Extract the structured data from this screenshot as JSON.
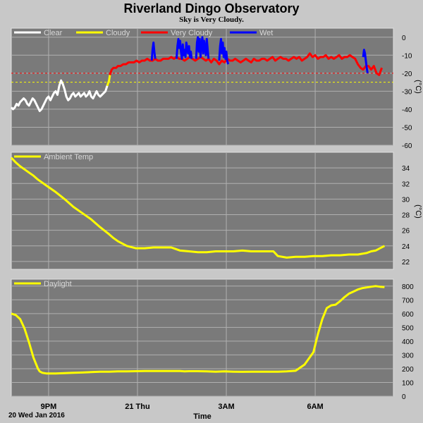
{
  "page": {
    "title": "Riverland Dingo Observatory",
    "subtitle": "Sky is Very Cloudy.",
    "date_label": "20 Wed Jan 2016"
  },
  "colors": {
    "background": "#c8c8c8",
    "plot": "#7a7a7a",
    "grid": "#b0b0b0",
    "clear": "#ffffff",
    "cloudy": "#ffff00",
    "very_cloudy": "#ff0000",
    "wet": "#0000ff"
  },
  "chart_data": [
    {
      "type": "line",
      "name": "sky",
      "ylabel": "(°C)",
      "ylim": [
        -60,
        5
      ],
      "yticks": [
        0,
        -10,
        -20,
        -30,
        -40,
        -50,
        -60
      ],
      "grid": true,
      "legend": {
        "placement": "top-left",
        "entries": [
          {
            "label": "Clear",
            "color": "#ffffff"
          },
          {
            "label": "Cloudy",
            "color": "#ffff00"
          },
          {
            "label": "Very Cloudy",
            "color": "#ff0000"
          },
          {
            "label": "Wet",
            "color": "#0000ff"
          }
        ]
      },
      "thresholds": [
        {
          "value": -20,
          "color": "#ff0000"
        },
        {
          "value": -25,
          "color": "#ffff00"
        }
      ],
      "series": [
        {
          "color": "#ffffff",
          "x": [
            0,
            0.2,
            0.4,
            0.6,
            0.8,
            1.0,
            1.2,
            1.4,
            1.6,
            1.8,
            2.0,
            2.2,
            2.4,
            2.6,
            2.8,
            3.0,
            3.2,
            3.4,
            3.6,
            3.8,
            4.0,
            4.2,
            4.4,
            4.6,
            4.8,
            5.0,
            5.2,
            5.4,
            5.6,
            5.8,
            6.0,
            6.2,
            6.4,
            6.6,
            6.8,
            7.0,
            7.2,
            7.4,
            7.6,
            7.8,
            8.0,
            8.2,
            8.4,
            8.6,
            8.8,
            9.0,
            9.2,
            9.4,
            9.6,
            9.8,
            10.0,
            10.2,
            10.4,
            10.6,
            10.8
          ],
          "y": [
            -39,
            -40,
            -39,
            -37,
            -38,
            -36,
            -35,
            -34,
            -35,
            -37,
            -38,
            -36,
            -34,
            -35,
            -37,
            -39,
            -41,
            -40,
            -38,
            -36,
            -34,
            -33,
            -35,
            -33,
            -31,
            -30,
            -32,
            -27,
            -24,
            -26,
            -29,
            -33,
            -35,
            -34,
            -32,
            -31,
            -33,
            -32,
            -31,
            -33,
            -32,
            -31,
            -33,
            -32,
            -30,
            -33,
            -34,
            -32,
            -30,
            -32,
            -33,
            -32,
            -31,
            -30,
            -27
          ]
        },
        {
          "color": "#ffff00",
          "x": [
            10.8,
            11.0,
            11.1
          ],
          "y": [
            -27,
            -24,
            -21
          ]
        },
        {
          "color": "#ff0000",
          "x": [
            11.1,
            11.3,
            11.5,
            11.8,
            12.0,
            12.3,
            12.6,
            12.9,
            13.2,
            13.5,
            13.8,
            14.1,
            14.4,
            14.7,
            15.0,
            15.3,
            15.6,
            15.9,
            16.2,
            16.5,
            16.8,
            17.1,
            17.4,
            17.7,
            18.0,
            18.3,
            18.6,
            18.9,
            19.2,
            19.5,
            19.8,
            20.1,
            20.4,
            20.7,
            21.0,
            21.3,
            21.6,
            21.9,
            22.2,
            22.5,
            22.8,
            23.1,
            23.4,
            23.7,
            24.0,
            24.3,
            24.6,
            24.9,
            25.2,
            25.5,
            25.8,
            26.1,
            26.4,
            26.7,
            27.0,
            27.3,
            27.6,
            27.9,
            28.2,
            28.5,
            28.8,
            29.1,
            29.4,
            29.7,
            30.0,
            30.3,
            30.6,
            30.9,
            31.2,
            31.5,
            31.8,
            32.1,
            32.4,
            32.7,
            33.0,
            33.3,
            33.6,
            33.9,
            34.2,
            34.5,
            34.8,
            35.1,
            35.4,
            35.7,
            36.0,
            36.3,
            36.6,
            36.9,
            37.2,
            37.5,
            37.8,
            38.1,
            38.4,
            38.7,
            39.0,
            39.3,
            39.6,
            39.9,
            40.2,
            40.5,
            40.8,
            41.1,
            41.4,
            41.7
          ],
          "y": [
            -21,
            -18,
            -17,
            -17,
            -16,
            -16,
            -15,
            -15,
            -14,
            -14,
            -14,
            -13,
            -14,
            -13,
            -13,
            -12,
            -13,
            -13,
            -12,
            -13,
            -13,
            -12,
            -12,
            -12,
            -11,
            -12,
            -11,
            -12,
            -12,
            -13,
            -12,
            -11,
            -12,
            -13,
            -12,
            -11,
            -12,
            -13,
            -12,
            -14,
            -12,
            -13,
            -15,
            -13,
            -14,
            -12,
            -13,
            -13,
            -12,
            -13,
            -14,
            -13,
            -12,
            -13,
            -14,
            -12,
            -13,
            -13,
            -12,
            -12,
            -13,
            -12,
            -11,
            -13,
            -12,
            -11,
            -12,
            -12,
            -13,
            -12,
            -11,
            -12,
            -11,
            -13,
            -12,
            -11,
            -9,
            -11,
            -10,
            -12,
            -11,
            -11,
            -10,
            -12,
            -11,
            -12,
            -11,
            -10,
            -12,
            -11,
            -11,
            -10,
            -11,
            -12,
            -15,
            -17,
            -18,
            -16,
            -16,
            -18,
            -16,
            -20,
            -21,
            -17
          ]
        },
        {
          "color": "#0000ff",
          "x": [
            15.8,
            15.9,
            16.0,
            16.1,
            16.2
          ],
          "y": [
            -13,
            -7,
            -3,
            -8,
            -12
          ]
        },
        {
          "color": "#0000ff",
          "x": [
            18.6,
            18.7,
            18.8,
            18.9,
            19.0,
            19.1,
            19.2,
            19.3,
            19.4,
            19.5,
            19.6,
            19.7,
            19.8,
            19.9,
            20.0,
            20.1,
            20.2,
            20.3
          ],
          "y": [
            -12,
            -5,
            -1,
            -6,
            -2,
            -8,
            -12,
            -4,
            -10,
            -7,
            -11,
            -3,
            -6,
            -9,
            -5,
            -11,
            -8,
            -12
          ]
        },
        {
          "color": "#0000ff",
          "x": [
            20.8,
            20.9,
            21.0,
            21.1,
            21.2,
            21.3,
            21.4,
            21.5,
            21.6,
            21.7,
            21.8,
            21.9,
            22.0,
            22.1,
            22.2
          ],
          "y": [
            -12,
            -3,
            0,
            -8,
            -1,
            -11,
            -4,
            0,
            -9,
            -2,
            -6,
            -10,
            -1,
            -7,
            -12
          ]
        },
        {
          "color": "#0000ff",
          "x": [
            23.4,
            23.5,
            23.6,
            23.7,
            23.8,
            23.9,
            24.0,
            24.1,
            24.2,
            24.3,
            24.4
          ],
          "y": [
            -13,
            -5,
            -1,
            -9,
            -3,
            -11,
            -6,
            -12,
            -8,
            -13,
            -15
          ]
        },
        {
          "color": "#0000ff",
          "x": [
            39.6,
            39.7,
            39.8,
            39.9,
            40.0,
            40.1
          ],
          "y": [
            -11,
            -7,
            -9,
            -13,
            -17,
            -20
          ]
        }
      ]
    },
    {
      "type": "line",
      "name": "ambient",
      "ylabel": "(°C)",
      "ylim": [
        21,
        36
      ],
      "yticks": [
        22,
        24,
        26,
        28,
        30,
        32,
        34
      ],
      "grid": true,
      "legend": {
        "placement": "top-left",
        "entries": [
          {
            "label": "Ambient Temp",
            "color": "#ffff00"
          }
        ]
      },
      "series": [
        {
          "color": "#ffff00",
          "x": [
            0,
            0.5,
            1.0,
            1.5,
            2.0,
            2.5,
            3.0,
            4.0,
            5.0,
            6.0,
            7.0,
            8.0,
            9.0,
            10.0,
            11.0,
            11.5,
            12.0,
            13.0,
            14.0,
            15.0,
            16.0,
            17.0,
            18.0,
            18.5,
            19.0,
            20.0,
            21.0,
            22.0,
            23.0,
            24.0,
            25.0,
            26.0,
            27.0,
            28.0,
            29.0,
            29.5,
            30.0,
            31.0,
            32.0,
            33.0,
            34.0,
            35.0,
            36.0,
            37.0,
            38.0,
            39.0,
            40.0,
            40.5,
            41.0,
            41.5,
            42.0
          ],
          "y": [
            35.3,
            34.7,
            34.2,
            33.8,
            33.4,
            33.0,
            32.5,
            31.7,
            30.9,
            30.0,
            29.0,
            28.2,
            27.4,
            26.4,
            25.5,
            25.0,
            24.6,
            24.0,
            23.7,
            23.7,
            23.8,
            23.8,
            23.8,
            23.6,
            23.4,
            23.3,
            23.2,
            23.2,
            23.3,
            23.3,
            23.3,
            23.4,
            23.3,
            23.3,
            23.3,
            23.3,
            22.7,
            22.5,
            22.6,
            22.6,
            22.7,
            22.7,
            22.8,
            22.8,
            22.9,
            22.9,
            23.1,
            23.3,
            23.4,
            23.7,
            24.0
          ]
        }
      ]
    },
    {
      "type": "line",
      "name": "daylight",
      "ylabel": "",
      "ylim": [
        0,
        850
      ],
      "yticks": [
        0,
        100,
        200,
        300,
        400,
        500,
        600,
        700,
        800
      ],
      "grid": true,
      "legend": {
        "placement": "top-left",
        "entries": [
          {
            "label": "Daylight",
            "color": "#ffff00"
          }
        ]
      },
      "xticks": [
        {
          "x": 4.2,
          "label": "9PM"
        },
        {
          "x": 14.2,
          "label": "21 Thu"
        },
        {
          "x": 24.2,
          "label": "3AM"
        },
        {
          "x": 34.2,
          "label": "6AM"
        }
      ],
      "xlabel": "Time",
      "series": [
        {
          "color": "#ffff00",
          "x": [
            0,
            0.5,
            1.0,
            1.5,
            2.0,
            2.5,
            3.0,
            3.2,
            3.5,
            4.0,
            5.0,
            6.0,
            7.0,
            8.0,
            9.0,
            10.0,
            11.0,
            12.0,
            13.0,
            14.0,
            15.0,
            16.0,
            17.0,
            18.0,
            19.0,
            19.5,
            20.0,
            21.0,
            22.0,
            23.0,
            24.0,
            25.0,
            26.0,
            27.0,
            28.0,
            29.0,
            30.0,
            31.0,
            32.0,
            33.0,
            34.0,
            34.5,
            35.0,
            35.5,
            36.0,
            36.5,
            37.0,
            37.5,
            38.0,
            38.5,
            39.0,
            39.5,
            40.0,
            40.5,
            41.0,
            41.5,
            42.0
          ],
          "y": [
            600,
            590,
            560,
            490,
            390,
            280,
            200,
            180,
            170,
            165,
            165,
            168,
            170,
            172,
            175,
            178,
            178,
            180,
            180,
            182,
            183,
            183,
            183,
            183,
            183,
            180,
            182,
            182,
            180,
            178,
            180,
            178,
            177,
            178,
            178,
            178,
            178,
            180,
            185,
            230,
            320,
            450,
            560,
            640,
            660,
            665,
            690,
            720,
            745,
            760,
            775,
            785,
            790,
            795,
            800,
            795,
            792
          ]
        }
      ]
    }
  ]
}
